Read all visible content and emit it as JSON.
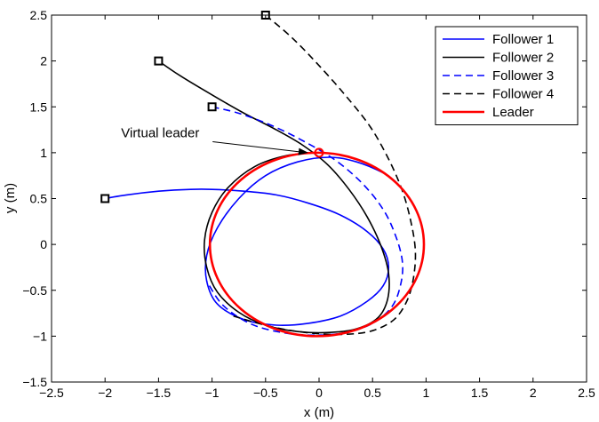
{
  "chart_data": {
    "type": "line",
    "title": "",
    "xlabel": "x (m)",
    "ylabel": "y (m)",
    "xlim": [
      -2.5,
      2.5
    ],
    "ylim": [
      -1.5,
      2.5
    ],
    "xticks": [
      -2.5,
      -2,
      -1.5,
      -1,
      -0.5,
      0,
      0.5,
      1,
      1.5,
      2,
      2.5
    ],
    "yticks": [
      -1.5,
      -1,
      -0.5,
      0,
      0.5,
      1,
      1.5,
      2,
      2.5
    ],
    "xtick_labels": [
      "−2.5",
      "−2",
      "−1.5",
      "−1",
      "−0.5",
      "0",
      "0.5",
      "1",
      "1.5",
      "2",
      "2.5"
    ],
    "ytick_labels": [
      "−1.5",
      "−1",
      "−0.5",
      "0",
      "0.5",
      "1",
      "1.5",
      "2",
      "2.5"
    ],
    "grid": false,
    "legend_position": "top-right",
    "annotation": {
      "text": "Virtual leader",
      "target": [
        -0.1,
        1.0
      ],
      "text_anchor_point": [
        -1.85,
        1.1
      ]
    },
    "leader_marker": {
      "x": 0,
      "y": 1
    },
    "series": [
      {
        "name": "Follower 1",
        "color": "#0000ff",
        "dash": "solid",
        "width": 1.6,
        "start": [
          -2,
          0.5
        ],
        "x": [
          -2,
          -1.8,
          -1.5,
          -1.2,
          -1.0,
          -0.7,
          -0.4,
          -0.1,
          0.2,
          0.45,
          0.6,
          0.65,
          0.6,
          0.45,
          0.2,
          -0.1,
          -0.4,
          -0.7,
          -0.95,
          -1.05,
          -1.05,
          -0.95,
          -0.75,
          -0.5,
          -0.2,
          0.1,
          0.35,
          0.6,
          0.72
        ],
        "y": [
          0.5,
          0.54,
          0.58,
          0.6,
          0.6,
          0.58,
          0.54,
          0.45,
          0.32,
          0.14,
          -0.05,
          -0.25,
          -0.45,
          -0.62,
          -0.78,
          -0.86,
          -0.88,
          -0.82,
          -0.65,
          -0.4,
          -0.12,
          0.18,
          0.5,
          0.75,
          0.9,
          0.95,
          0.9,
          0.78,
          0.68
        ]
      },
      {
        "name": "Follower 2",
        "color": "#000000",
        "dash": "solid",
        "width": 1.6,
        "start": [
          -1.5,
          2
        ],
        "x": [
          -1.5,
          -1.3,
          -1.0,
          -0.7,
          -0.4,
          -0.15,
          0.08,
          0.28,
          0.45,
          0.58,
          0.65,
          0.64,
          0.55,
          0.35,
          0.1,
          -0.2,
          -0.5,
          -0.75,
          -0.95,
          -1.05,
          -1.07,
          -1.0,
          -0.85,
          -0.6,
          -0.3,
          0.0
        ],
        "y": [
          2.0,
          1.84,
          1.63,
          1.43,
          1.25,
          1.08,
          0.87,
          0.6,
          0.3,
          -0.02,
          -0.32,
          -0.6,
          -0.8,
          -0.92,
          -0.96,
          -0.95,
          -0.88,
          -0.74,
          -0.52,
          -0.25,
          0.05,
          0.35,
          0.62,
          0.85,
          0.97,
          1.0
        ]
      },
      {
        "name": "Follower 3",
        "color": "#0000ff",
        "dash": "dashed",
        "width": 1.6,
        "start": [
          -1,
          1.5
        ],
        "x": [
          -1.0,
          -0.75,
          -0.45,
          -0.15,
          0.15,
          0.4,
          0.6,
          0.72,
          0.78,
          0.76,
          0.68,
          0.5,
          0.25,
          -0.05,
          -0.35,
          -0.65,
          -0.9,
          -1.05
        ],
        "y": [
          1.5,
          1.43,
          1.3,
          1.13,
          0.92,
          0.67,
          0.38,
          0.08,
          -0.2,
          -0.45,
          -0.68,
          -0.86,
          -0.96,
          -0.99,
          -0.96,
          -0.86,
          -0.66,
          -0.4
        ]
      },
      {
        "name": "Follower 4",
        "color": "#000000",
        "dash": "dashed",
        "width": 1.6,
        "start": [
          -0.5,
          2.5
        ],
        "x": [
          -0.5,
          -0.25,
          0.0,
          0.25,
          0.48,
          0.65,
          0.78,
          0.86,
          0.9,
          0.88,
          0.82,
          0.7,
          0.5,
          0.25,
          -0.05,
          -0.35,
          -0.6,
          -0.8
        ],
        "y": [
          2.5,
          2.25,
          1.95,
          1.62,
          1.28,
          0.93,
          0.58,
          0.24,
          -0.08,
          -0.38,
          -0.62,
          -0.82,
          -0.94,
          -0.98,
          -0.97,
          -0.92,
          -0.85,
          -0.78
        ]
      },
      {
        "name": "Leader",
        "color": "#ff0000",
        "dash": "solid",
        "width": 2.6,
        "circle": {
          "cx": -0.02,
          "cy": 0.0,
          "r": 1.0
        }
      }
    ]
  }
}
